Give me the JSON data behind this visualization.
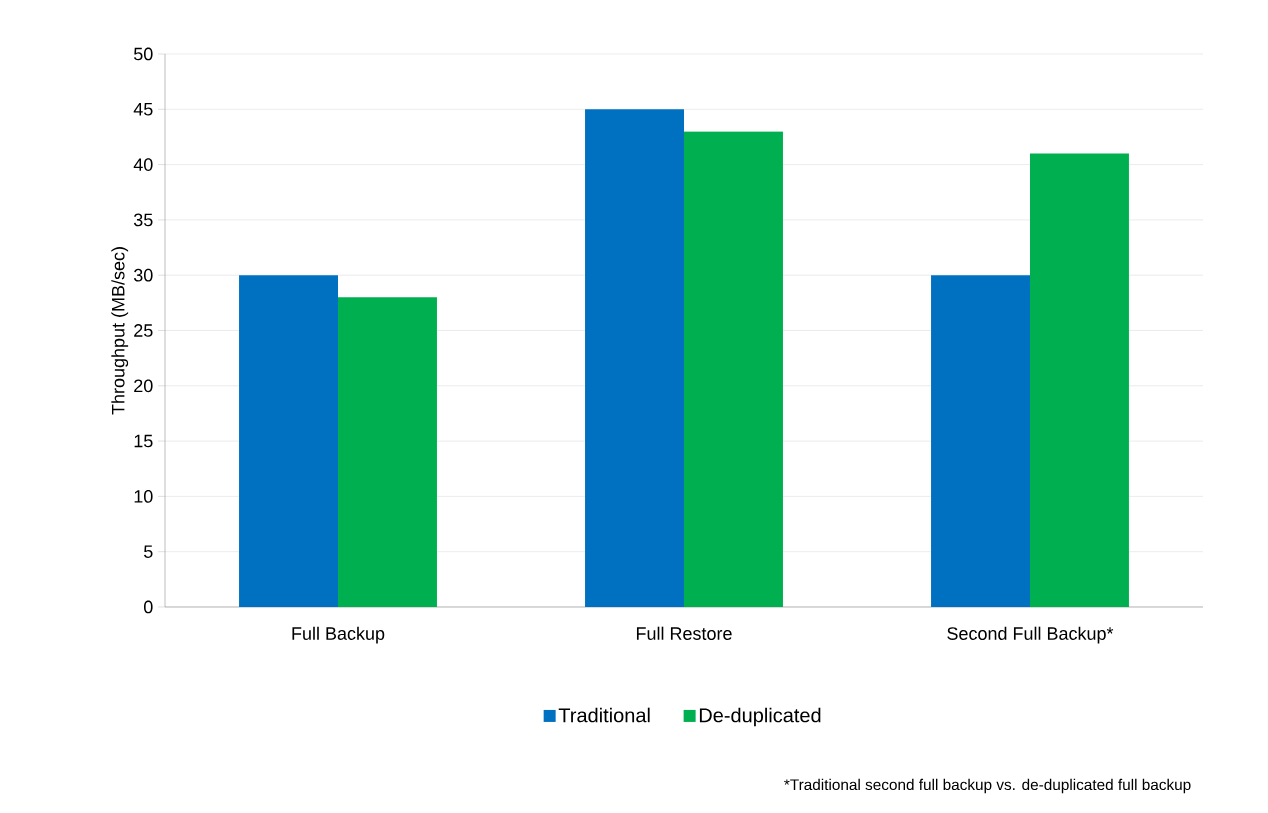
{
  "chart_data": {
    "type": "bar",
    "ylabel": "Throughput (MB/sec)",
    "categories": [
      "Full Backup",
      "Full Restore",
      "Second Full Backup*"
    ],
    "series": [
      {
        "name": "Traditional",
        "color": "#0070c0",
        "values": [
          30,
          45,
          30
        ]
      },
      {
        "name": "De-duplicated",
        "color": "#00b050",
        "values": [
          28,
          43,
          41
        ]
      }
    ],
    "ylim": [
      0,
      50
    ],
    "yticks": [
      0,
      5,
      10,
      15,
      20,
      25,
      30,
      35,
      40,
      45,
      50
    ],
    "grid": "y",
    "legend": "bottom",
    "annotations": [
      "*Traditional second full backup  vs. de-duplicated full backup"
    ]
  }
}
